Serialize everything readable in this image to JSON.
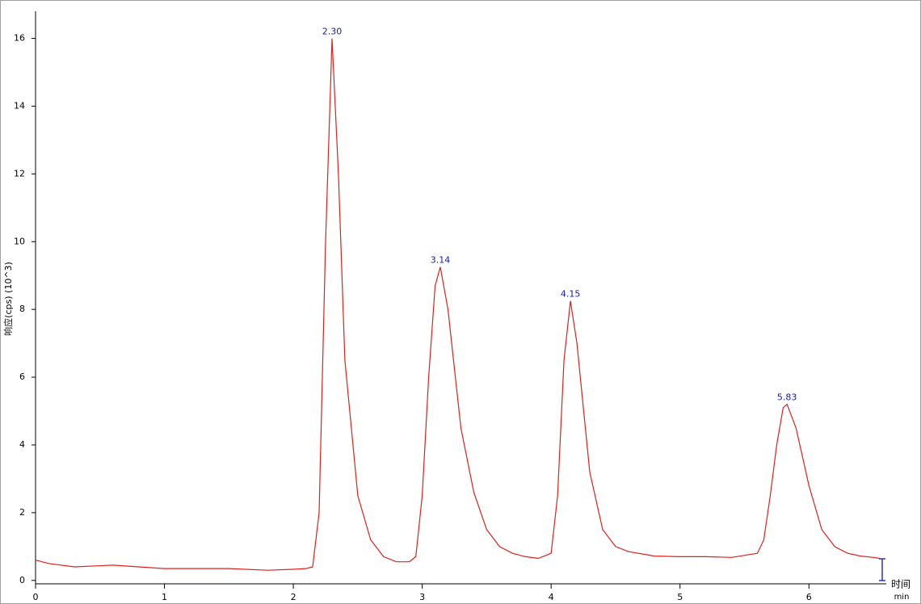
{
  "chart_data": {
    "type": "line",
    "y_label": "响应(cps) (10^3)",
    "x_label": "时间",
    "x_unit": "min",
    "xlim": [
      0,
      6.6
    ],
    "ylim": [
      -0.1,
      16.8
    ],
    "xticks": [
      0,
      1,
      2,
      3,
      4,
      5,
      6
    ],
    "yticks": [
      0,
      2,
      4,
      6,
      8,
      10,
      12,
      14,
      16
    ],
    "x": [
      0,
      0.1,
      0.3,
      0.6,
      1.0,
      1.5,
      1.8,
      2.0,
      2.1,
      2.15,
      2.2,
      2.25,
      2.3,
      2.35,
      2.4,
      2.5,
      2.6,
      2.7,
      2.8,
      2.9,
      2.95,
      3.0,
      3.05,
      3.1,
      3.14,
      3.2,
      3.3,
      3.4,
      3.5,
      3.6,
      3.7,
      3.8,
      3.9,
      4.0,
      4.05,
      4.1,
      4.15,
      4.2,
      4.3,
      4.4,
      4.5,
      4.6,
      4.8,
      5.0,
      5.2,
      5.4,
      5.6,
      5.65,
      5.7,
      5.75,
      5.8,
      5.83,
      5.9,
      6.0,
      6.1,
      6.2,
      6.3,
      6.4,
      6.5,
      6.55
    ],
    "series": [
      {
        "color": "#e0201a",
        "values": [
          0.6,
          0.5,
          0.4,
          0.45,
          0.35,
          0.35,
          0.3,
          0.33,
          0.35,
          0.4,
          2.0,
          10,
          16.0,
          12,
          6.5,
          2.5,
          1.2,
          0.7,
          0.55,
          0.55,
          0.7,
          2.5,
          6,
          8.7,
          9.25,
          8.0,
          4.5,
          2.6,
          1.5,
          1.0,
          0.8,
          0.7,
          0.65,
          0.8,
          2.5,
          6.5,
          8.25,
          7.0,
          3.2,
          1.5,
          1.0,
          0.85,
          0.72,
          0.7,
          0.7,
          0.68,
          0.8,
          1.2,
          2.5,
          4.0,
          5.1,
          5.2,
          4.5,
          2.8,
          1.5,
          1.0,
          0.8,
          0.72,
          0.68,
          0.65
        ]
      }
    ],
    "peak_labels": [
      {
        "value": 2.3,
        "label": "2.30"
      },
      {
        "value": 3.14,
        "label": "3.14"
      },
      {
        "value": 4.15,
        "label": "4.15"
      },
      {
        "value": 5.83,
        "label": "5.83"
      }
    ]
  }
}
